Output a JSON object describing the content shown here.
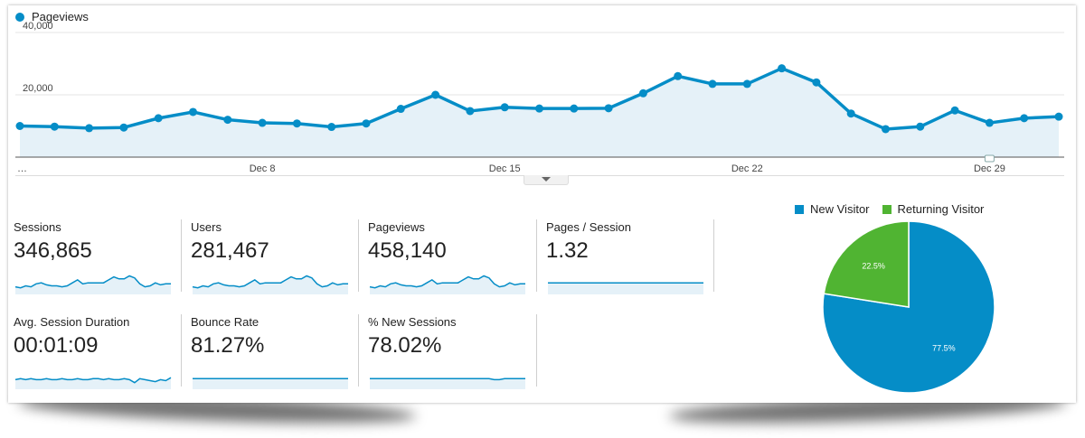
{
  "colors": {
    "accent": "#058dc7",
    "area": "#e5f1f8",
    "new_visitor": "#058dc7",
    "returning_visitor": "#50b432"
  },
  "chart_data": [
    {
      "type": "line",
      "series": [
        {
          "name": "Pageviews",
          "values": [
            10000,
            9800,
            9300,
            9500,
            12500,
            14500,
            12000,
            11000,
            10800,
            9700,
            10800,
            15500,
            20000,
            14800,
            16000,
            15600,
            15600,
            15700,
            20500,
            26000,
            23500,
            23500,
            28500,
            24000,
            14000,
            9000,
            9800,
            15000,
            11000,
            12500,
            13000
          ]
        }
      ],
      "x_tick_labels": [
        "…",
        "Dec 8",
        "Dec 15",
        "Dec 22",
        "Dec 29"
      ],
      "y_tick_labels": [
        "40,000",
        "20,000"
      ],
      "ylim": [
        0,
        40000
      ],
      "grid": true
    },
    {
      "type": "pie",
      "categories": [
        "New Visitor",
        "Returning Visitor"
      ],
      "values": [
        77.5,
        22.5
      ],
      "labels": [
        "77.5%",
        "22.5%"
      ],
      "legend": "top"
    }
  ],
  "metrics": [
    {
      "label": "Sessions",
      "value": "346,865",
      "spark": [
        12,
        11,
        13,
        12,
        15,
        16,
        14,
        13,
        13,
        12,
        13,
        16,
        19,
        15,
        16,
        16,
        16,
        16,
        19,
        22,
        20,
        20,
        23,
        21,
        15,
        12,
        13,
        16,
        14,
        15,
        15
      ]
    },
    {
      "label": "Users",
      "value": "281,467",
      "spark": [
        12,
        11,
        13,
        12,
        15,
        16,
        14,
        13,
        13,
        12,
        13,
        16,
        19,
        15,
        16,
        16,
        16,
        16,
        19,
        22,
        20,
        20,
        23,
        21,
        15,
        12,
        13,
        16,
        14,
        15,
        15
      ]
    },
    {
      "label": "Pageviews",
      "value": "458,140",
      "spark": [
        12,
        11,
        13,
        12,
        15,
        16,
        14,
        13,
        13,
        12,
        13,
        16,
        19,
        15,
        16,
        16,
        16,
        16,
        19,
        22,
        20,
        20,
        23,
        21,
        15,
        12,
        13,
        16,
        14,
        15,
        15
      ]
    },
    {
      "label": "Pages / Session",
      "value": "1.32",
      "spark": [
        16,
        16,
        16,
        16,
        16,
        16,
        16,
        16,
        16,
        16,
        16,
        16,
        16,
        16,
        16,
        16,
        16,
        16,
        16,
        16,
        16,
        16,
        16,
        16,
        16,
        16,
        16,
        16,
        16,
        16,
        16
      ]
    },
    {
      "label": "Avg. Session Duration",
      "value": "00:01:09",
      "spark": [
        14,
        15,
        14,
        15,
        14,
        14,
        15,
        14,
        14,
        15,
        14,
        14,
        15,
        14,
        14,
        15,
        15,
        14,
        15,
        14,
        14,
        15,
        14,
        11,
        15,
        14,
        13,
        12,
        14,
        13,
        16
      ]
    },
    {
      "label": "Bounce Rate",
      "value": "81.27%",
      "spark": [
        15,
        15,
        15,
        15,
        15,
        15,
        15,
        15,
        15,
        15,
        15,
        15,
        15,
        15,
        15,
        15,
        15,
        15,
        15,
        15,
        15,
        15,
        15,
        15,
        15,
        15,
        15,
        15,
        15,
        15,
        15
      ]
    },
    {
      "label": "% New Sessions",
      "value": "78.02%",
      "spark": [
        15,
        15,
        15,
        15,
        15,
        15,
        15,
        15,
        15,
        15,
        15,
        15,
        15,
        15,
        15,
        15,
        15,
        15,
        15,
        15,
        15,
        15,
        15,
        15,
        14,
        14,
        15,
        15,
        15,
        15,
        15
      ]
    }
  ]
}
